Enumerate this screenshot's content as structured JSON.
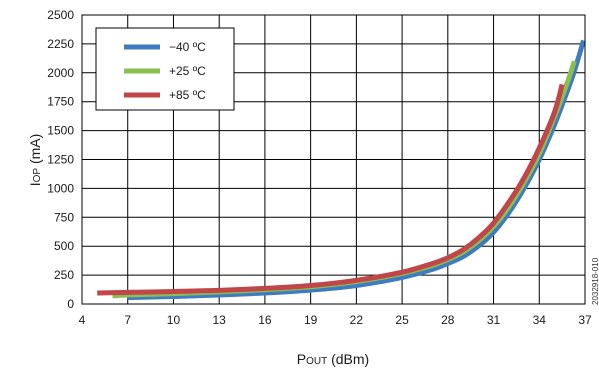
{
  "chart_data": {
    "type": "line",
    "xlabel_main": "P",
    "xlabel_sub": "OUT",
    "xlabel_unit": " (dBm)",
    "ylabel_main": "I",
    "ylabel_sub": "OP",
    "ylabel_unit": " (mA)",
    "xlim": [
      4,
      37
    ],
    "ylim": [
      0,
      2500
    ],
    "xticks": [
      4,
      7,
      10,
      13,
      16,
      19,
      22,
      25,
      28,
      31,
      34,
      37
    ],
    "yticks": [
      0,
      250,
      500,
      750,
      1000,
      1250,
      1500,
      1750,
      2000,
      2250,
      2500
    ],
    "grid": true,
    "legend_position": "top-left",
    "figure_id": "2032918-010",
    "series": [
      {
        "name": "−40 ºC",
        "color": "#3f7cbf",
        "points": [
          [
            7,
            55
          ],
          [
            10,
            65
          ],
          [
            13,
            78
          ],
          [
            16,
            95
          ],
          [
            19,
            120
          ],
          [
            22,
            160
          ],
          [
            25,
            230
          ],
          [
            27,
            300
          ],
          [
            28,
            350
          ],
          [
            29,
            410
          ],
          [
            30,
            500
          ],
          [
            31,
            620
          ],
          [
            32,
            790
          ],
          [
            33,
            1000
          ],
          [
            34,
            1250
          ],
          [
            35,
            1550
          ],
          [
            36,
            1900
          ],
          [
            36.5,
            2100
          ],
          [
            36.9,
            2280
          ]
        ]
      },
      {
        "name": "+25 ºC",
        "color": "#8cbf4f",
        "points": [
          [
            6,
            70
          ],
          [
            7,
            78
          ],
          [
            10,
            90
          ],
          [
            13,
            105
          ],
          [
            16,
            125
          ],
          [
            19,
            150
          ],
          [
            22,
            195
          ],
          [
            25,
            265
          ],
          [
            27,
            335
          ],
          [
            28,
            385
          ],
          [
            29,
            450
          ],
          [
            30,
            545
          ],
          [
            31,
            670
          ],
          [
            32,
            840
          ],
          [
            33,
            1050
          ],
          [
            34,
            1300
          ],
          [
            35,
            1620
          ],
          [
            35.8,
            1900
          ],
          [
            36.3,
            2100
          ]
        ]
      },
      {
        "name": "+85 ºC",
        "color": "#c0464a",
        "points": [
          [
            5,
            95
          ],
          [
            7,
            100
          ],
          [
            10,
            108
          ],
          [
            13,
            118
          ],
          [
            16,
            135
          ],
          [
            19,
            160
          ],
          [
            22,
            205
          ],
          [
            25,
            275
          ],
          [
            27,
            350
          ],
          [
            28,
            400
          ],
          [
            29,
            470
          ],
          [
            30,
            570
          ],
          [
            31,
            700
          ],
          [
            32,
            880
          ],
          [
            33,
            1090
          ],
          [
            34,
            1350
          ],
          [
            35,
            1660
          ],
          [
            35.5,
            1900
          ]
        ]
      }
    ]
  }
}
